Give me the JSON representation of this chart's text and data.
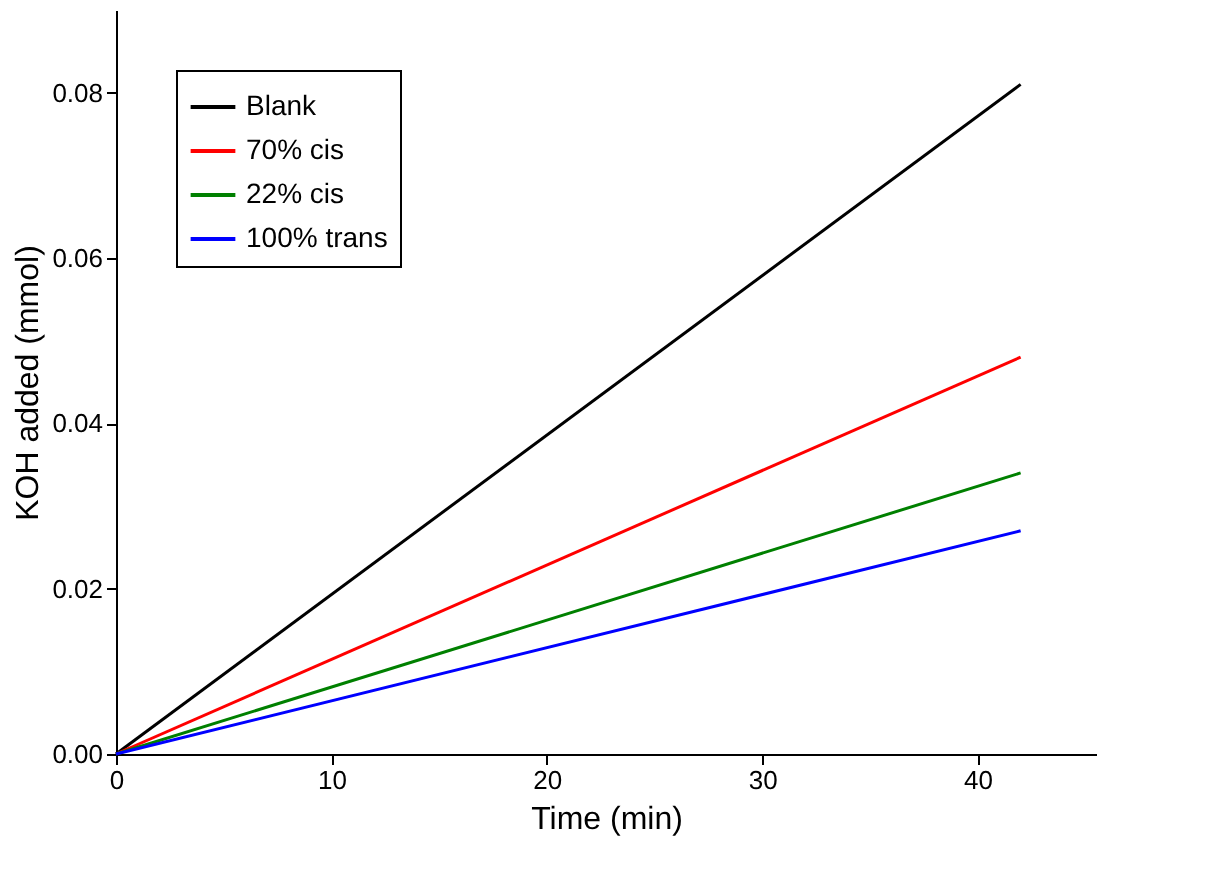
{
  "chart_data": {
    "type": "line",
    "xlabel": "Time (min)",
    "ylabel": "KOH added (mmol)",
    "x": [
      0,
      42
    ],
    "series": [
      {
        "name": "Blank",
        "color": "#000000",
        "values": [
          0,
          0.081
        ]
      },
      {
        "name": "70% cis",
        "color": "#ff0000",
        "values": [
          0,
          0.048
        ]
      },
      {
        "name": "22% cis",
        "color": "#008000",
        "values": [
          0,
          0.034
        ]
      },
      {
        "name": "100% trans",
        "color": "#0000ff",
        "values": [
          0,
          0.027
        ]
      }
    ],
    "xlim": [
      0,
      45.5
    ],
    "xticks": [
      0,
      10,
      20,
      30,
      40
    ],
    "ylim": [
      0,
      0.09
    ],
    "yticks": [
      {
        "value": 0,
        "label": "0.00"
      },
      {
        "value": 0.02,
        "label": "0.02"
      },
      {
        "value": 0.04,
        "label": "0.04"
      },
      {
        "value": 0.06,
        "label": "0.06"
      },
      {
        "value": 0.08,
        "label": "0.08"
      }
    ],
    "grid": false,
    "legend": "top left",
    "marker": "none",
    "line_style": "solid"
  }
}
